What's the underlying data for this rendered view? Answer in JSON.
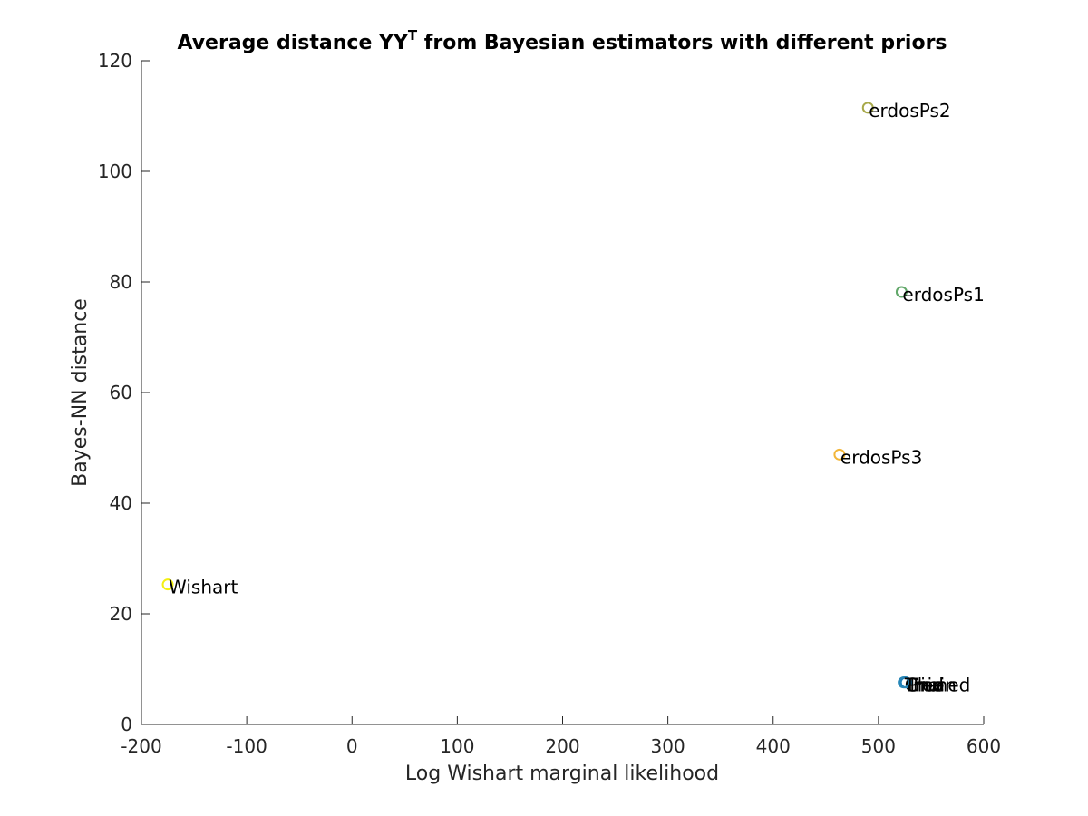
{
  "chart_data": {
    "type": "scatter",
    "title": "Average distance YY",
    "title_superscript": "T",
    "title_suffix": " from Bayesian estimators with different priors",
    "xlabel": "Log Wishart marginal likelihood",
    "ylabel": "Bayes-NN distance",
    "xlim": [
      -200,
      600
    ],
    "ylim": [
      0,
      120
    ],
    "xticks": [
      -200,
      -100,
      0,
      100,
      200,
      300,
      400,
      500,
      600
    ],
    "yticks": [
      0,
      20,
      40,
      60,
      80,
      100,
      120
    ],
    "grid": false,
    "legend": "none",
    "points": [
      {
        "label": "erdosPs2",
        "x": 490,
        "y": 111.5,
        "color": "#a8a94a"
      },
      {
        "label": "erdosPs1",
        "x": 522,
        "y": 78.2,
        "color": "#62a86a"
      },
      {
        "label": "erdosPs3",
        "x": 463,
        "y": 48.8,
        "color": "#f2b63a"
      },
      {
        "label": "Wishart",
        "x": -175,
        "y": 25.3,
        "color": "#f4f012"
      },
      {
        "label": "Chain",
        "x": 524,
        "y": 7.6,
        "color": "#3aa8c8"
      },
      {
        "label": "Grid",
        "x": 525,
        "y": 7.6,
        "color": "#2e9bc4"
      },
      {
        "label": "Tree",
        "x": 526,
        "y": 7.6,
        "color": "#2a8ec0"
      },
      {
        "label": "Pruned",
        "x": 526,
        "y": 7.6,
        "color": "#1f7fb8"
      },
      {
        "label": "Tri",
        "x": 524,
        "y": 7.6,
        "color": "#2a86b6"
      }
    ]
  }
}
